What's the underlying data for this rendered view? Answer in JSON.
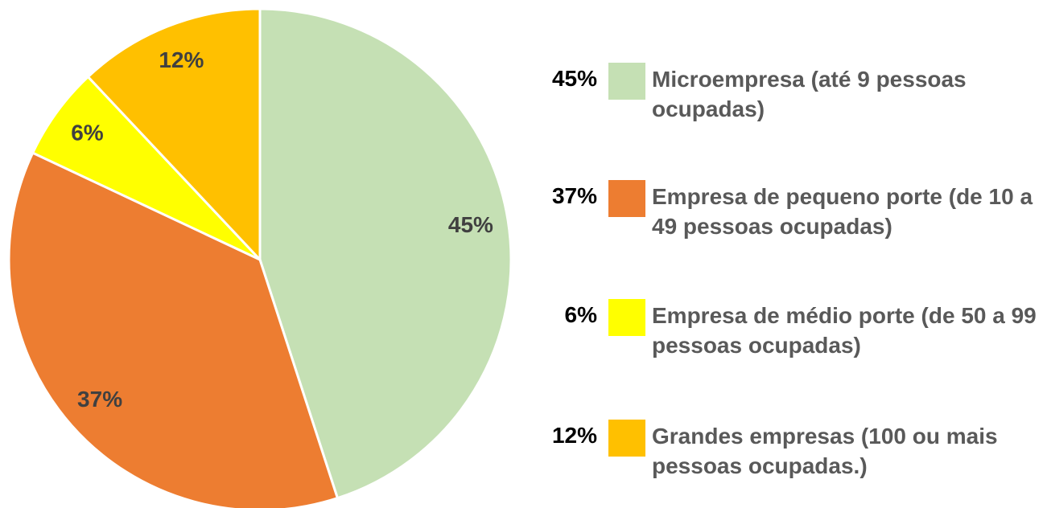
{
  "chart_data": {
    "type": "pie",
    "categories": [
      "Microempresa (até 9 pessoas ocupadas)",
      "Empresa de pequeno porte (de 10 a 49 pessoas ocupadas)",
      "Empresa de médio porte (de 50 a 99 pessoas ocupadas)",
      "Grandes empresas (100 ou mais pessoas ocupadas.)"
    ],
    "values": [
      45,
      37,
      6,
      12
    ],
    "value_labels": [
      "45%",
      "37%",
      "6%",
      "12%"
    ],
    "colors": [
      "#c5e0b4",
      "#ed7d31",
      "#ffff00",
      "#ffc000"
    ],
    "legend": "right"
  }
}
